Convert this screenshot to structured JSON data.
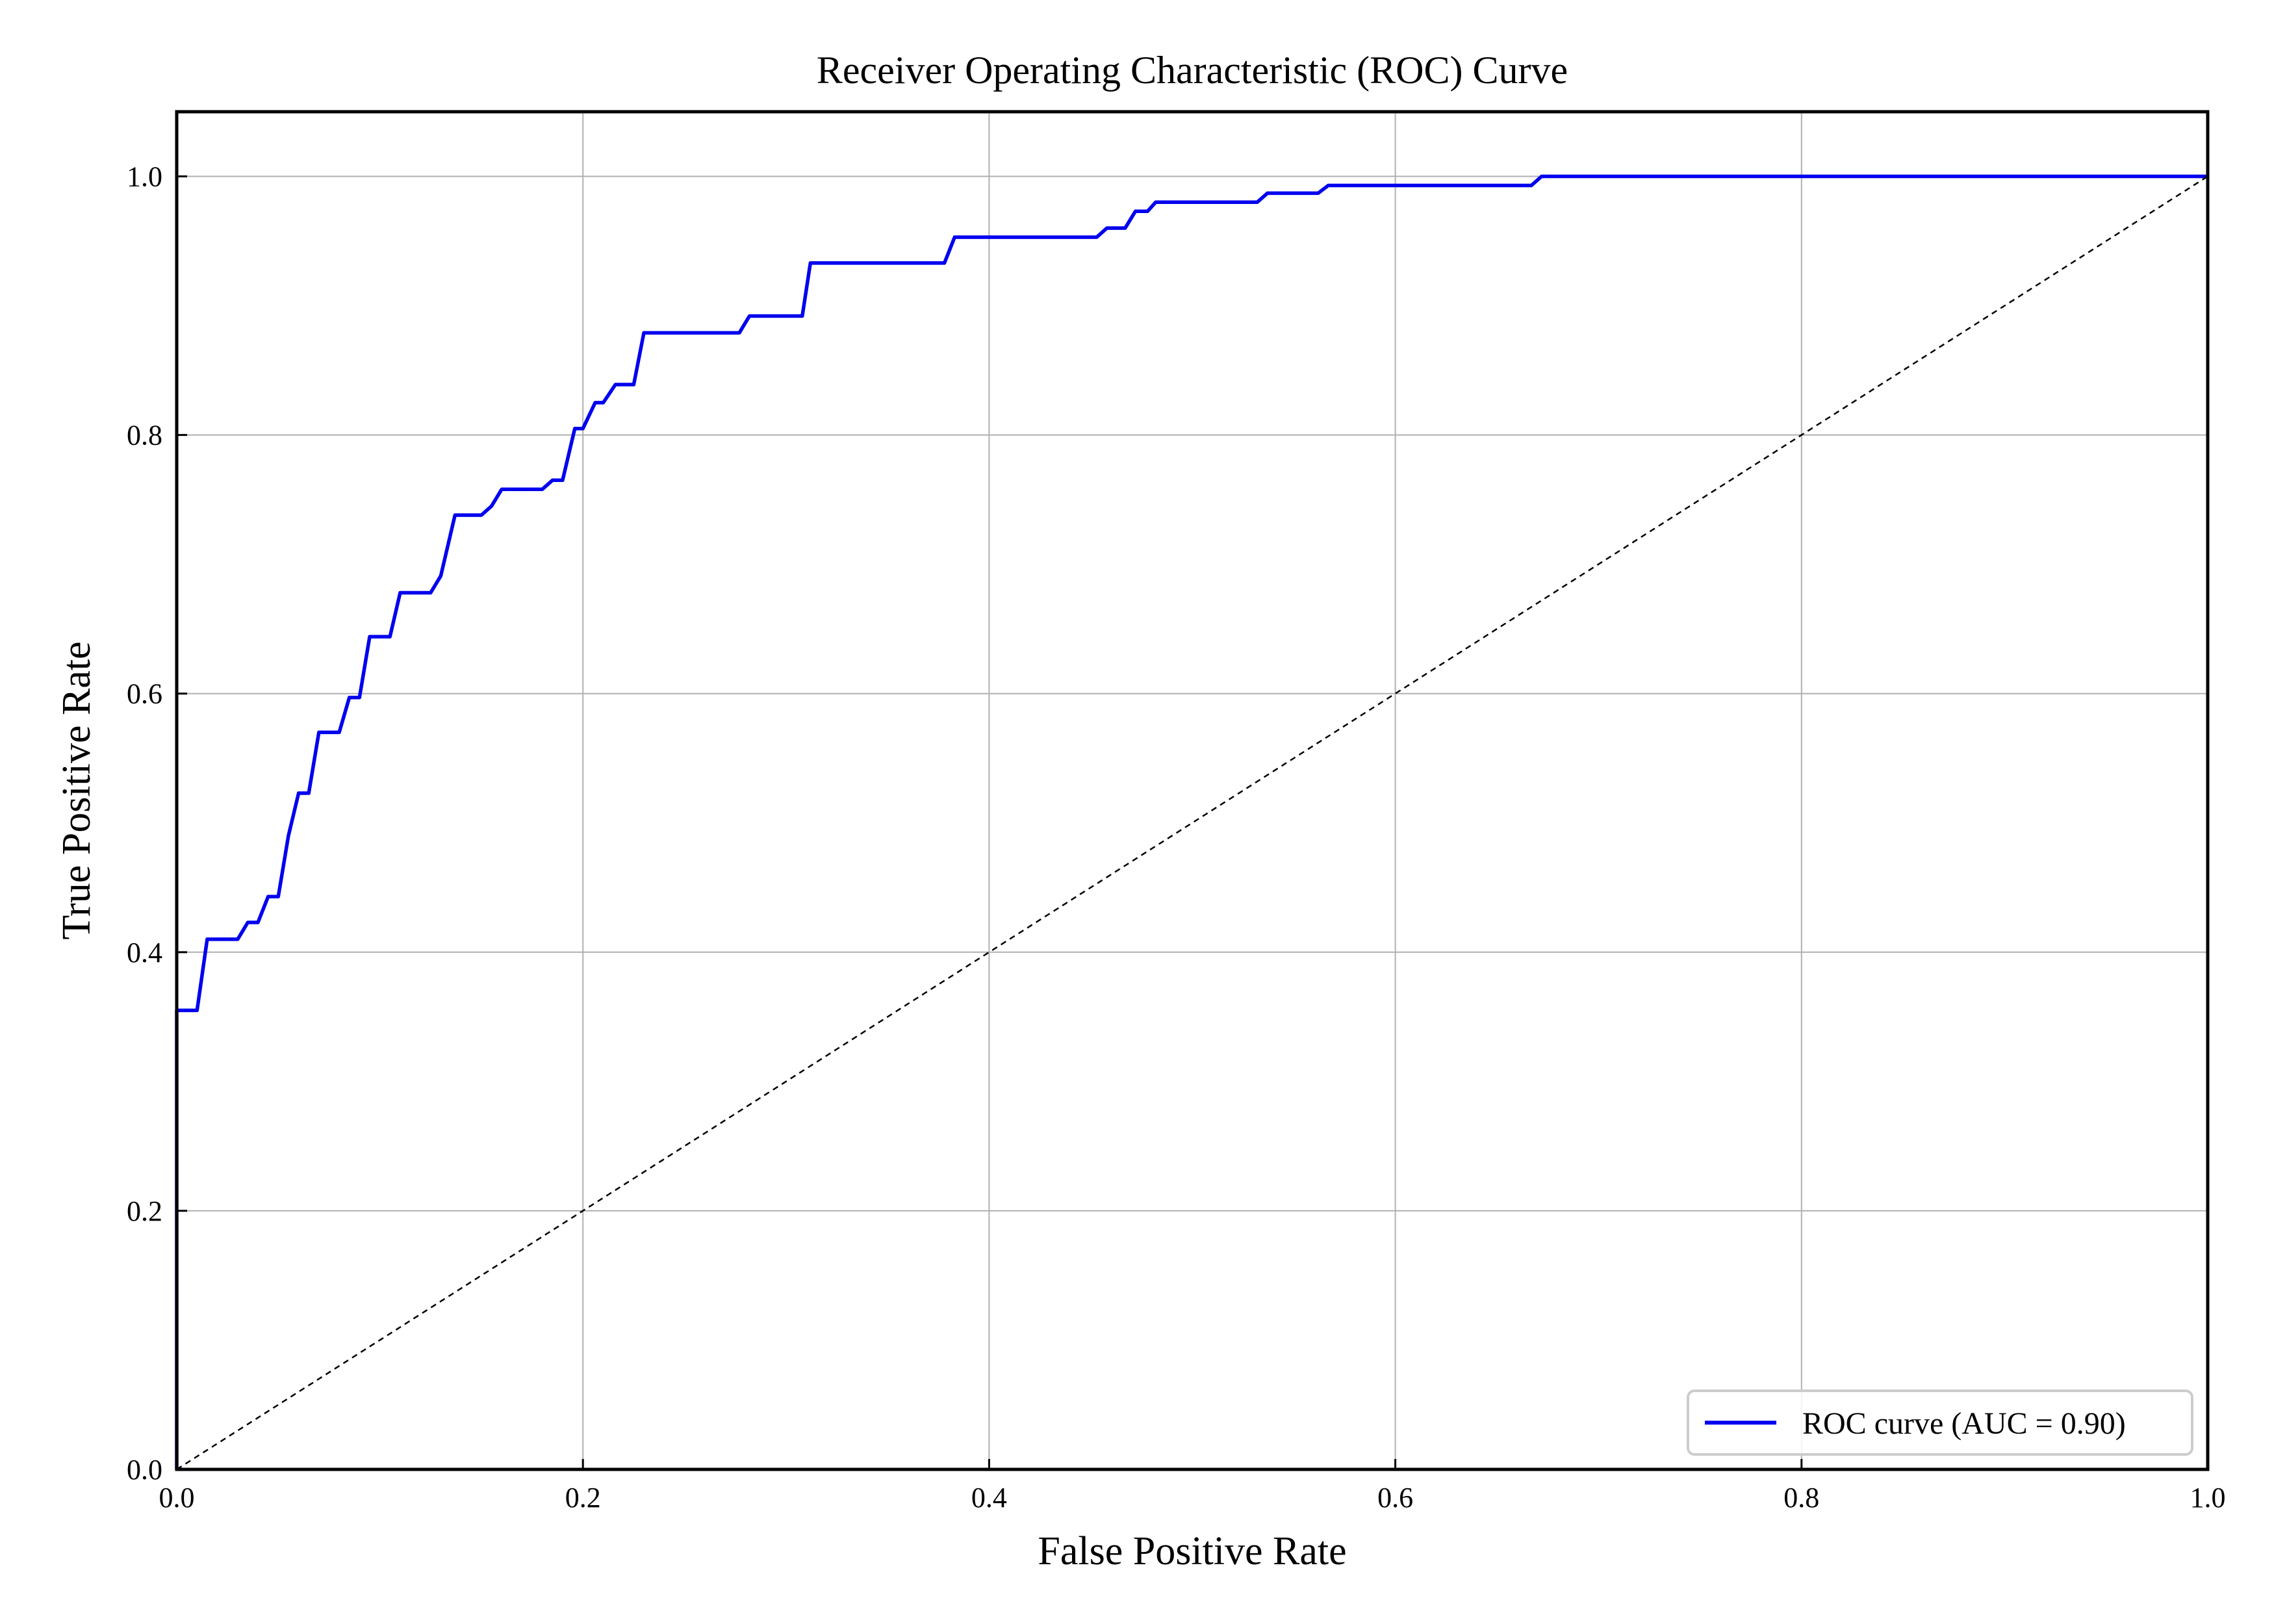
{
  "colors": {
    "roc_line": "#0000ee",
    "reference_line": "#000000",
    "grid": "#b0b0b0",
    "frame": "#000000",
    "legend_border": "#cccccc"
  },
  "chart_data": {
    "type": "line",
    "title": "Receiver Operating Characteristic (ROC) Curve",
    "xlabel": "False Positive Rate",
    "ylabel": "True Positive Rate",
    "xlim": [
      0.0,
      1.0
    ],
    "ylim": [
      0.0,
      1.05
    ],
    "xticks": [
      0.0,
      0.2,
      0.4,
      0.6,
      0.8,
      1.0
    ],
    "yticks": [
      0.0,
      0.2,
      0.4,
      0.6,
      0.8,
      1.0
    ],
    "xtick_labels": [
      "0.0",
      "0.2",
      "0.4",
      "0.6",
      "0.8",
      "1.0"
    ],
    "ytick_labels": [
      "0.0",
      "0.2",
      "0.4",
      "0.6",
      "0.8",
      "1.0"
    ],
    "grid": true,
    "legend_position": "lower-right",
    "series": [
      {
        "name": "ROC curve (AUC = 0.90)",
        "style": "solid",
        "x": [
          0.0,
          0.0,
          0.01,
          0.015,
          0.03,
          0.035,
          0.04,
          0.045,
          0.05,
          0.055,
          0.06,
          0.065,
          0.07,
          0.08,
          0.085,
          0.09,
          0.095,
          0.105,
          0.11,
          0.125,
          0.13,
          0.137,
          0.15,
          0.155,
          0.16,
          0.18,
          0.185,
          0.19,
          0.196,
          0.2,
          0.206,
          0.21,
          0.216,
          0.225,
          0.23,
          0.277,
          0.282,
          0.308,
          0.312,
          0.378,
          0.383,
          0.453,
          0.458,
          0.467,
          0.472,
          0.478,
          0.482,
          0.532,
          0.537,
          0.562,
          0.567,
          0.667,
          0.672,
          1.0
        ],
        "y": [
          0.0,
          0.355,
          0.355,
          0.41,
          0.41,
          0.423,
          0.423,
          0.443,
          0.443,
          0.49,
          0.523,
          0.523,
          0.57,
          0.57,
          0.597,
          0.597,
          0.644,
          0.644,
          0.678,
          0.678,
          0.691,
          0.738,
          0.738,
          0.745,
          0.758,
          0.758,
          0.765,
          0.765,
          0.805,
          0.805,
          0.825,
          0.825,
          0.839,
          0.839,
          0.879,
          0.879,
          0.892,
          0.892,
          0.933,
          0.933,
          0.953,
          0.953,
          0.96,
          0.96,
          0.973,
          0.973,
          0.98,
          0.98,
          0.987,
          0.987,
          0.993,
          0.993,
          1.0,
          1.0
        ]
      },
      {
        "style": "dashed",
        "x": [
          0.0,
          1.0
        ],
        "y": [
          0.0,
          1.0
        ]
      }
    ]
  }
}
